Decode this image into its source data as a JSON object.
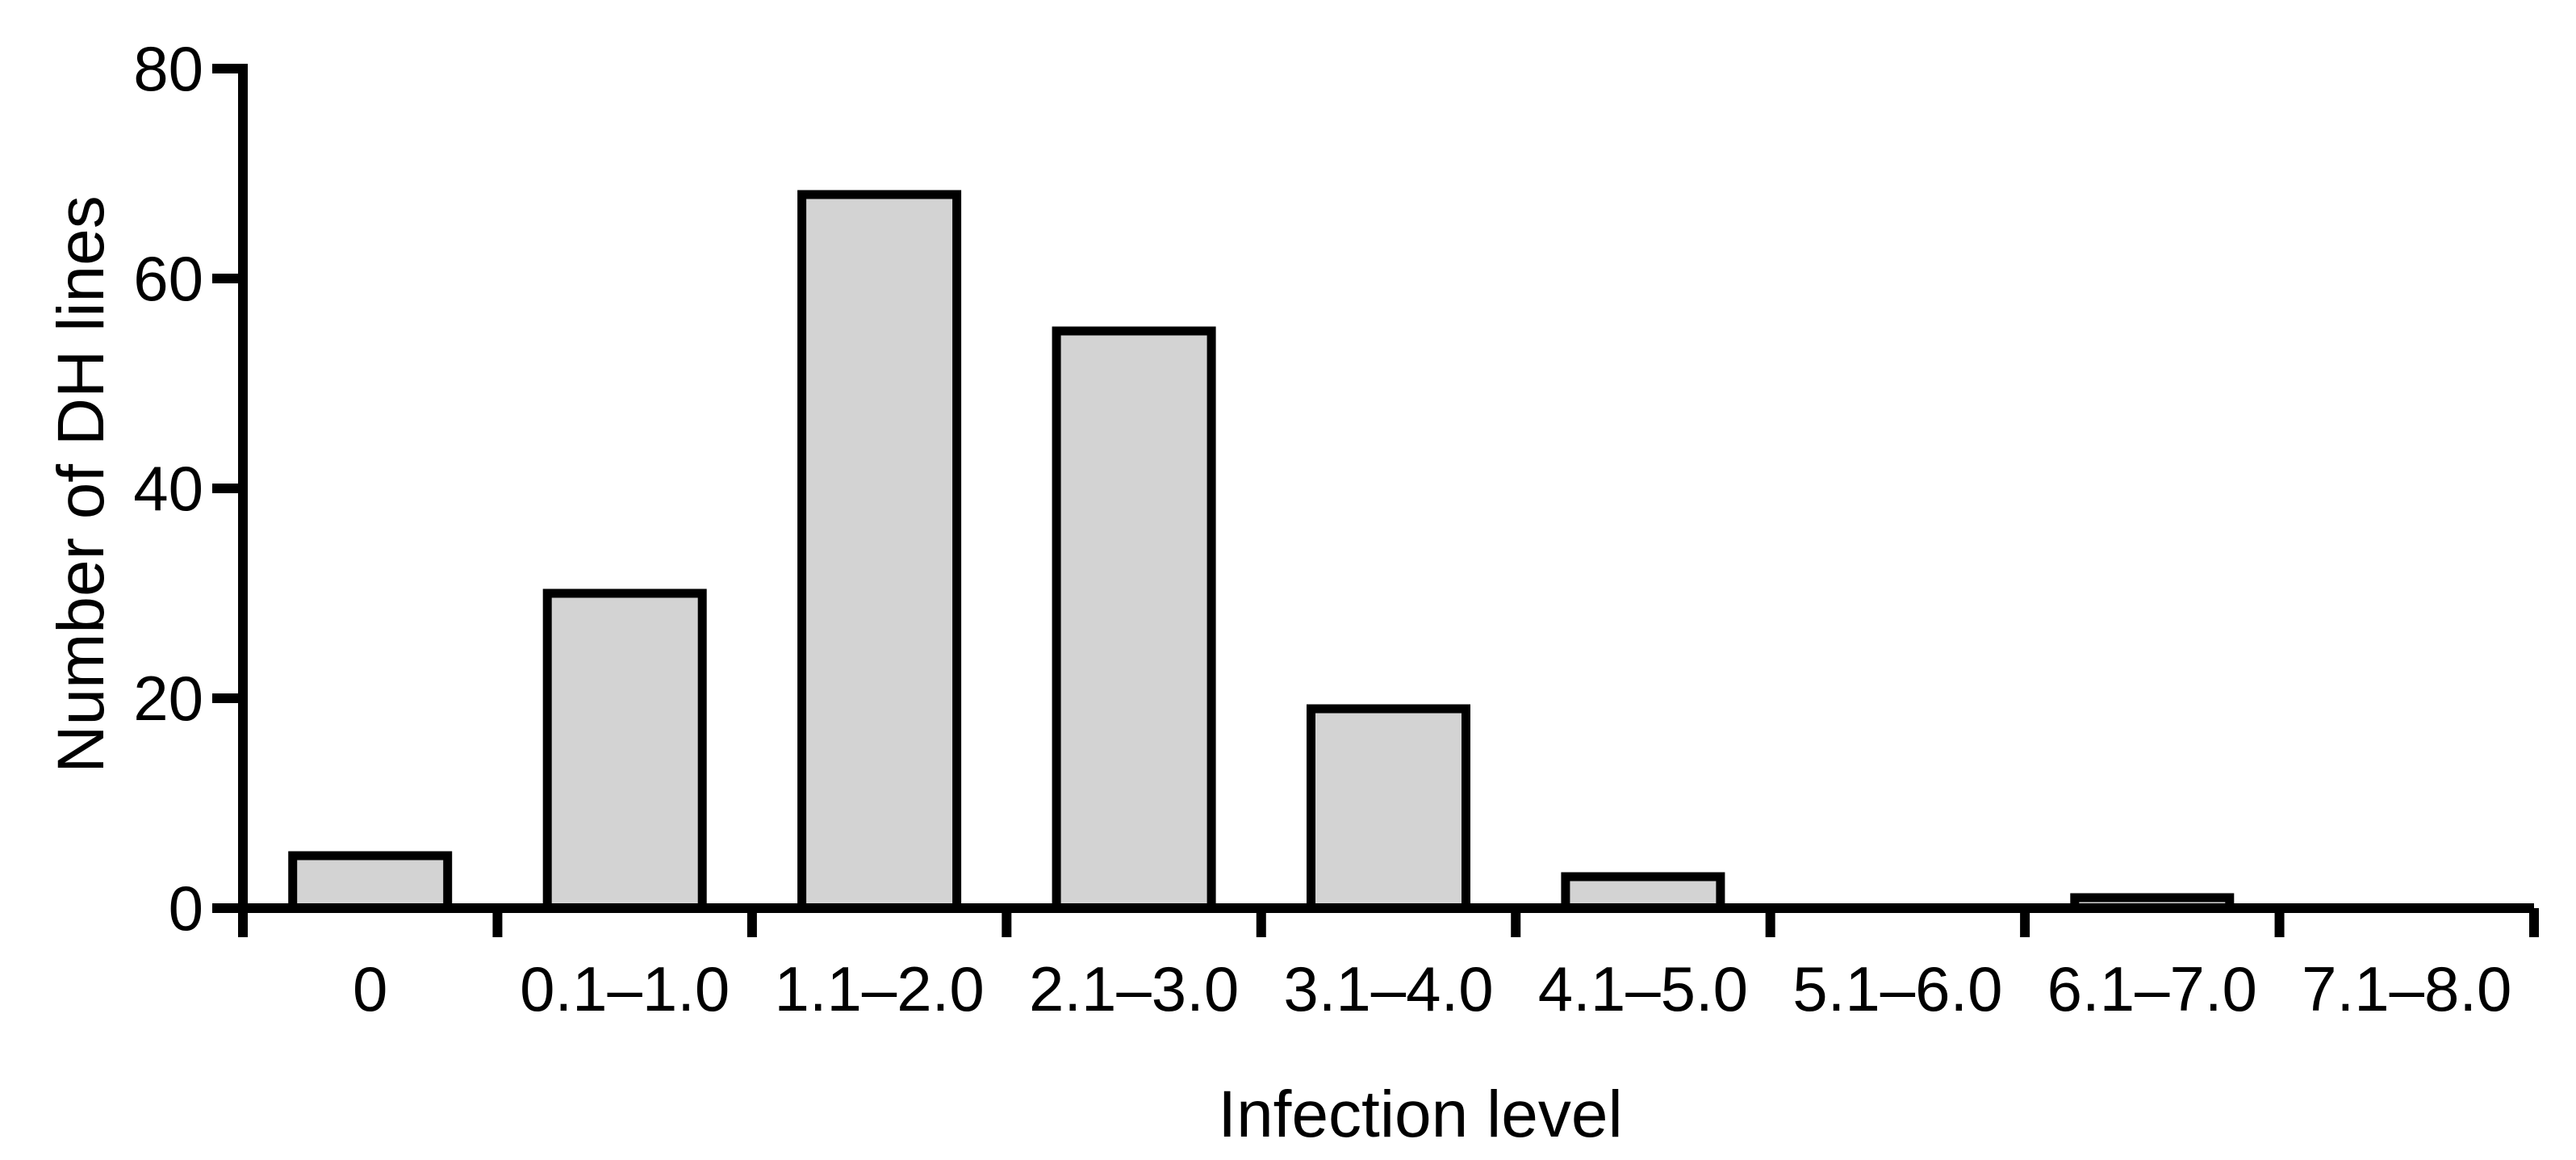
{
  "chart_data": {
    "type": "bar",
    "title": "",
    "categories": [
      "0",
      "0.1–1.0",
      "1.1–2.0",
      "2.1–3.0",
      "3.1–4.0",
      "4.1–5.0",
      "5.1–6.0",
      "6.1–7.0",
      "7.1–8.0"
    ],
    "values": [
      5,
      30,
      68,
      55,
      19,
      3,
      0,
      1,
      0
    ],
    "xlabel": "Infection level",
    "ylabel": "Number of DH lines",
    "yticks": [
      0,
      20,
      40,
      60,
      80
    ],
    "ylim": [
      0,
      80
    ],
    "grid": false,
    "legend": "none",
    "colors": {
      "bar_fill": "#d3d3d3",
      "bar_stroke": "#000000",
      "axis": "#000000",
      "text": "#000000",
      "background": "#ffffff"
    }
  }
}
